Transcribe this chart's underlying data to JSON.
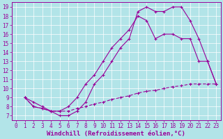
{
  "xlabel": "Windchill (Refroidissement éolien,°C)",
  "bg_color": "#b2e4e8",
  "line_color": "#990099",
  "grid_color": "#ffffff",
  "xlim": [
    -0.5,
    23.5
  ],
  "ylim": [
    6.5,
    19.5
  ],
  "xticks": [
    0,
    1,
    2,
    3,
    4,
    5,
    6,
    7,
    8,
    9,
    10,
    11,
    12,
    13,
    14,
    15,
    16,
    17,
    18,
    19,
    20,
    21,
    22,
    23
  ],
  "yticks": [
    7,
    8,
    9,
    10,
    11,
    12,
    13,
    14,
    15,
    16,
    17,
    18,
    19
  ],
  "line1_x": [
    1,
    2,
    3,
    4,
    5,
    6,
    7,
    8,
    9,
    10,
    11,
    12,
    13,
    14,
    15,
    16,
    17,
    18,
    19,
    20,
    21,
    22,
    23
  ],
  "line1_y": [
    9.0,
    8.5,
    8.0,
    7.5,
    7.0,
    7.0,
    7.5,
    8.5,
    10.5,
    11.5,
    13.0,
    14.5,
    15.5,
    18.5,
    19.0,
    18.5,
    18.5,
    19.0,
    19.0,
    17.5,
    15.5,
    13.0,
    10.5
  ],
  "line2_x": [
    1,
    2,
    3,
    4,
    5,
    6,
    7,
    8,
    9,
    10,
    11,
    12,
    13,
    14,
    15,
    16,
    17,
    18,
    19,
    20,
    21,
    22,
    23
  ],
  "line2_y": [
    9.0,
    8.0,
    7.8,
    7.5,
    7.5,
    7.5,
    7.8,
    8.0,
    8.3,
    8.5,
    8.8,
    9.0,
    9.2,
    9.5,
    9.7,
    9.8,
    10.0,
    10.2,
    10.3,
    10.5,
    10.5,
    10.5,
    10.5
  ],
  "line3_x": [
    1,
    2,
    3,
    4,
    5,
    6,
    7,
    8,
    9,
    10,
    11,
    12,
    13,
    14,
    15,
    16,
    17,
    18,
    19,
    20,
    21,
    22,
    23
  ],
  "line3_y": [
    9.0,
    8.0,
    7.8,
    7.5,
    7.5,
    8.0,
    9.0,
    10.5,
    11.5,
    13.0,
    14.5,
    15.5,
    16.5,
    18.0,
    17.5,
    15.5,
    16.0,
    16.0,
    15.5,
    15.5,
    13.0,
    13.0,
    10.5
  ],
  "marker": "+",
  "markersize": 3,
  "linewidth": 0.8,
  "fontsize_tick": 5.5,
  "fontsize_xlabel": 6.5
}
